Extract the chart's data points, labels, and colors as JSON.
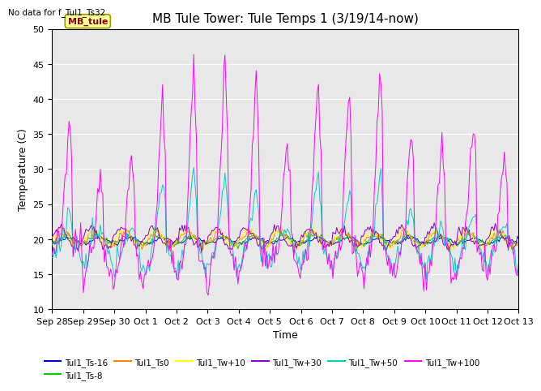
{
  "title": "MB Tule Tower: Tule Temps 1 (3/19/14-now)",
  "no_data_text": "No data for f_Tul1_Ts32",
  "ylabel": "Temperature (C)",
  "xlabel": "Time",
  "ylim": [
    10,
    50
  ],
  "xtick_labels": [
    "Sep 28",
    "Sep 29",
    "Sep 30",
    "Oct 1",
    "Oct 2",
    "Oct 3",
    "Oct 4",
    "Oct 5",
    "Oct 6",
    "Oct 7",
    "Oct 8",
    "Oct 9",
    "Oct 10",
    "Oct 11",
    "Oct 12",
    "Oct 13"
  ],
  "legend_label": "MB_tule",
  "legend_box_color": "#ffff99",
  "legend_box_border": "#999900",
  "series_colors": {
    "Tul1_Ts-16": "#0000cc",
    "Tul1_Ts-8": "#00cc00",
    "Tul1_Ts0": "#ff8800",
    "Tul1_Tw+10": "#ffff00",
    "Tul1_Tw+30": "#8800cc",
    "Tul1_Tw+50": "#00cccc",
    "Tul1_Tw+100": "#ff00ff"
  },
  "background_color": "#e8e8e8",
  "title_fontsize": 11,
  "axis_fontsize": 9,
  "tick_fontsize": 8,
  "yticks": [
    10,
    15,
    20,
    25,
    30,
    35,
    40,
    45,
    50
  ]
}
